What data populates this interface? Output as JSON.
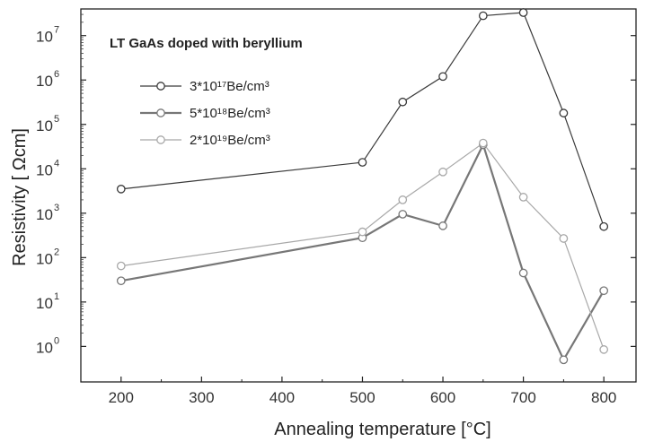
{
  "chart_data": {
    "type": "line",
    "title": "LT GaAs doped with beryllium",
    "xlabel": "Annealing temperature [°C]",
    "ylabel": "Resistivity  [ Ωcm]",
    "xlim": [
      150,
      840
    ],
    "ylim_log10": [
      -0.8,
      7.6
    ],
    "yscale": "log",
    "xticks": [
      200,
      300,
      400,
      500,
      600,
      700,
      800
    ],
    "yticks": [
      {
        "base": "10",
        "exp": "0"
      },
      {
        "base": "10",
        "exp": "1"
      },
      {
        "base": "10",
        "exp": "2"
      },
      {
        "base": "10",
        "exp": "3"
      },
      {
        "base": "10",
        "exp": "4"
      },
      {
        "base": "10",
        "exp": "5"
      },
      {
        "base": "10",
        "exp": "6"
      },
      {
        "base": "10",
        "exp": "7"
      }
    ],
    "legend_position": "top-left",
    "series": [
      {
        "name": "3*10¹⁷Be/cm³",
        "color": "#3a3a3a",
        "stroke_width": 1.2,
        "points": [
          [
            200,
            3500.0
          ],
          [
            500,
            14000.0
          ],
          [
            550,
            320000.0
          ],
          [
            600,
            1200000.0
          ],
          [
            650,
            28000000.0
          ],
          [
            700,
            33000000.0
          ],
          [
            750,
            180000.0
          ],
          [
            800,
            500
          ]
        ]
      },
      {
        "name": "5*10¹⁸Be/cm³",
        "color": "#777777",
        "stroke_width": 2.2,
        "points": [
          [
            200,
            30
          ],
          [
            500,
            280
          ],
          [
            550,
            950
          ],
          [
            600,
            520
          ],
          [
            650,
            35000.0
          ],
          [
            700,
            45
          ],
          [
            750,
            0.5
          ],
          [
            800,
            18
          ]
        ]
      },
      {
        "name": "2*10¹⁹Be/cm³",
        "color": "#a8a8a8",
        "stroke_width": 1.2,
        "points": [
          [
            200,
            65
          ],
          [
            500,
            380
          ],
          [
            550,
            2000.0
          ],
          [
            600,
            8500.0
          ],
          [
            650,
            38000.0
          ],
          [
            700,
            2300.0
          ],
          [
            750,
            270
          ],
          [
            800,
            0.85
          ]
        ]
      }
    ]
  }
}
